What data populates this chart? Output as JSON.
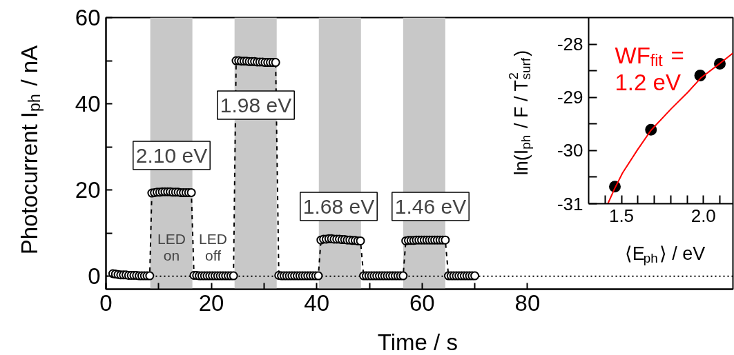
{
  "chart_data": [
    {
      "type": "line",
      "xlabel": "Time / s",
      "ylabel": "Photocurrent I$_{ph}$ / nA",
      "x": [
        1.3,
        1.8,
        2.3,
        2.8,
        3.3,
        3.8,
        4.3,
        4.8,
        5.3,
        5.8,
        6.3,
        6.8,
        7.3,
        7.8,
        8.3,
        8.7,
        9.2,
        9.7,
        10.2,
        10.7,
        11.2,
        11.7,
        12.2,
        12.7,
        13.2,
        13.7,
        14.2,
        14.7,
        15.2,
        15.7,
        16.2,
        16.7,
        17.2,
        17.7,
        18.2,
        18.7,
        19.2,
        19.7,
        20.2,
        20.7,
        21.2,
        21.7,
        22.2,
        22.7,
        23.2,
        23.7,
        24.2,
        24.7,
        25.2,
        25.7,
        26.2,
        26.7,
        27.2,
        27.7,
        28.2,
        28.7,
        29.2,
        29.7,
        30.2,
        30.7,
        31.2,
        31.7,
        32.2,
        32.8,
        33.3,
        33.8,
        34.3,
        34.8,
        35.3,
        35.8,
        36.3,
        36.8,
        37.3,
        37.8,
        38.3,
        38.8,
        39.3,
        39.8,
        40.3,
        40.8,
        41.3,
        41.8,
        42.3,
        42.8,
        43.3,
        43.8,
        44.3,
        44.8,
        45.3,
        45.8,
        46.3,
        46.8,
        47.3,
        47.8,
        48.3,
        48.9,
        49.4,
        49.9,
        50.4,
        50.9,
        51.4,
        51.9,
        52.4,
        52.9,
        53.4,
        53.9,
        54.4,
        54.9,
        55.4,
        55.9,
        56.4,
        56.9,
        57.4,
        57.9,
        58.4,
        58.9,
        59.4,
        59.9,
        60.4,
        60.9,
        61.4,
        61.9,
        62.4,
        62.9,
        63.4,
        63.9,
        64.4,
        65.0,
        65.5,
        66.0,
        66.5,
        67.0,
        67.5,
        68.0,
        68.5,
        69.0,
        69.5,
        70.0
      ],
      "series": [
        {
          "color": "#000000",
          "values": [
            0.6,
            0.5,
            0.4,
            0.3,
            0.3,
            0.3,
            0.2,
            0.2,
            0.2,
            0.2,
            0.1,
            0.1,
            0.1,
            0.1,
            0.1,
            19.3,
            19.4,
            19.5,
            19.5,
            19.6,
            19.6,
            19.6,
            19.6,
            19.5,
            19.5,
            19.5,
            19.4,
            19.4,
            19.4,
            19.4,
            19.4,
            0.2,
            0.2,
            0.1,
            0.1,
            0.1,
            0.1,
            0.1,
            0.1,
            0.1,
            0.1,
            0.1,
            0.1,
            0.1,
            0.1,
            0.1,
            0.1,
            50.0,
            50.0,
            49.9,
            49.9,
            49.9,
            49.8,
            49.8,
            49.8,
            49.7,
            49.7,
            49.7,
            49.6,
            49.6,
            49.6,
            49.6,
            49.6,
            0.2,
            0.1,
            0.1,
            0.1,
            0.1,
            0.1,
            0.1,
            0.1,
            0.1,
            0.1,
            0.1,
            0.1,
            0.1,
            0.1,
            0.1,
            0.1,
            8.4,
            8.6,
            8.6,
            8.7,
            8.7,
            8.6,
            8.6,
            8.6,
            8.5,
            8.5,
            8.4,
            8.4,
            8.3,
            8.3,
            8.2,
            8.2,
            0.1,
            0.1,
            0.1,
            0.1,
            0.1,
            0.1,
            0.1,
            0.1,
            0.1,
            0.1,
            0.1,
            0.1,
            0.1,
            0.1,
            0.1,
            0.1,
            8.2,
            8.3,
            8.3,
            8.3,
            8.4,
            8.4,
            8.4,
            8.4,
            8.4,
            8.4,
            8.4,
            8.4,
            8.4,
            8.4,
            8.4,
            8.4,
            0.1,
            0.1,
            0.1,
            0.1,
            0.1,
            0.1,
            0.1,
            0.1,
            0.1,
            0.1,
            0.1
          ]
        }
      ],
      "marker": "circle",
      "line_style": "dashed",
      "grid": false,
      "xlim": [
        0,
        119
      ],
      "ylim": [
        -3,
        60
      ],
      "xticks": [
        0,
        {
          "value": 10,
          "label": null
        },
        20,
        {
          "value": 30,
          "label": null
        },
        40,
        {
          "value": 50,
          "label": null
        },
        60,
        {
          "value": 70,
          "label": null
        },
        80
      ],
      "yticks": [
        0,
        {
          "value": 10,
          "label": null
        },
        20,
        {
          "value": 30,
          "label": null
        },
        40,
        {
          "value": 50,
          "label": null
        },
        60
      ],
      "bands": [
        {
          "axis": "x",
          "from": 8.4,
          "to": 16.4,
          "color": "#c8c8c8"
        },
        {
          "axis": "x",
          "from": 24.4,
          "to": 32.4,
          "color": "#c8c8c8"
        },
        {
          "axis": "x",
          "from": 40.4,
          "to": 48.4,
          "color": "#c8c8c8"
        },
        {
          "axis": "x",
          "from": 56.4,
          "to": 64.4,
          "color": "#c8c8c8"
        }
      ],
      "ref_lines": [
        {
          "axis": "y",
          "value": 0,
          "color": "#000000",
          "line_style": "dotted"
        }
      ],
      "annotations": [
        "2.10 eV",
        "1.98 eV",
        "1.68 eV",
        "1.46 eV",
        "LED\non",
        "LED\noff"
      ]
    },
    {
      "type": "scatter",
      "xlabel": "⟨E$_{ph}$⟩ / eV",
      "ylabel": "ln(I$_{ph}$ / F / T$^{2}$$_{surf}$)",
      "x": [
        1.46,
        1.68,
        1.98,
        2.1
      ],
      "series": [
        {
          "type": "scatter",
          "color": "#000000",
          "values": [
            -30.68,
            -29.61,
            -28.59,
            -28.37
          ]
        },
        {
          "type": "line",
          "color": "#ff0000",
          "marker": "none",
          "x": [
            1.417,
            1.458,
            1.507,
            1.597,
            1.68,
            1.805,
            1.903,
            1.986,
            2.097,
            2.179
          ],
          "values": [
            -31.0,
            -30.72,
            -30.42,
            -29.99,
            -29.62,
            -29.21,
            -28.91,
            -28.63,
            -28.37,
            -28.17
          ]
        }
      ],
      "marker": "circle",
      "grid": false,
      "xlim": [
        1.3,
        2.18
      ],
      "ylim": [
        -31,
        -27.5
      ],
      "xticks": [
        {
          "value": 1.4,
          "label": null
        },
        1.5,
        {
          "value": 1.6,
          "label": null
        },
        {
          "value": 1.7,
          "label": null
        },
        {
          "value": 1.8,
          "label": null
        },
        {
          "value": 1.9,
          "label": null
        },
        {
          "value": 2,
          "label": "2.0"
        },
        {
          "value": 2.1,
          "label": null
        }
      ],
      "yticks": [
        -31,
        {
          "value": -30.5,
          "label": null
        },
        -30,
        {
          "value": -29.5,
          "label": null
        },
        -29,
        {
          "value": -28.5,
          "label": null
        },
        -28
      ],
      "annotations": [
        "WF$_{fit}$ =\n1.2 eV"
      ]
    }
  ]
}
